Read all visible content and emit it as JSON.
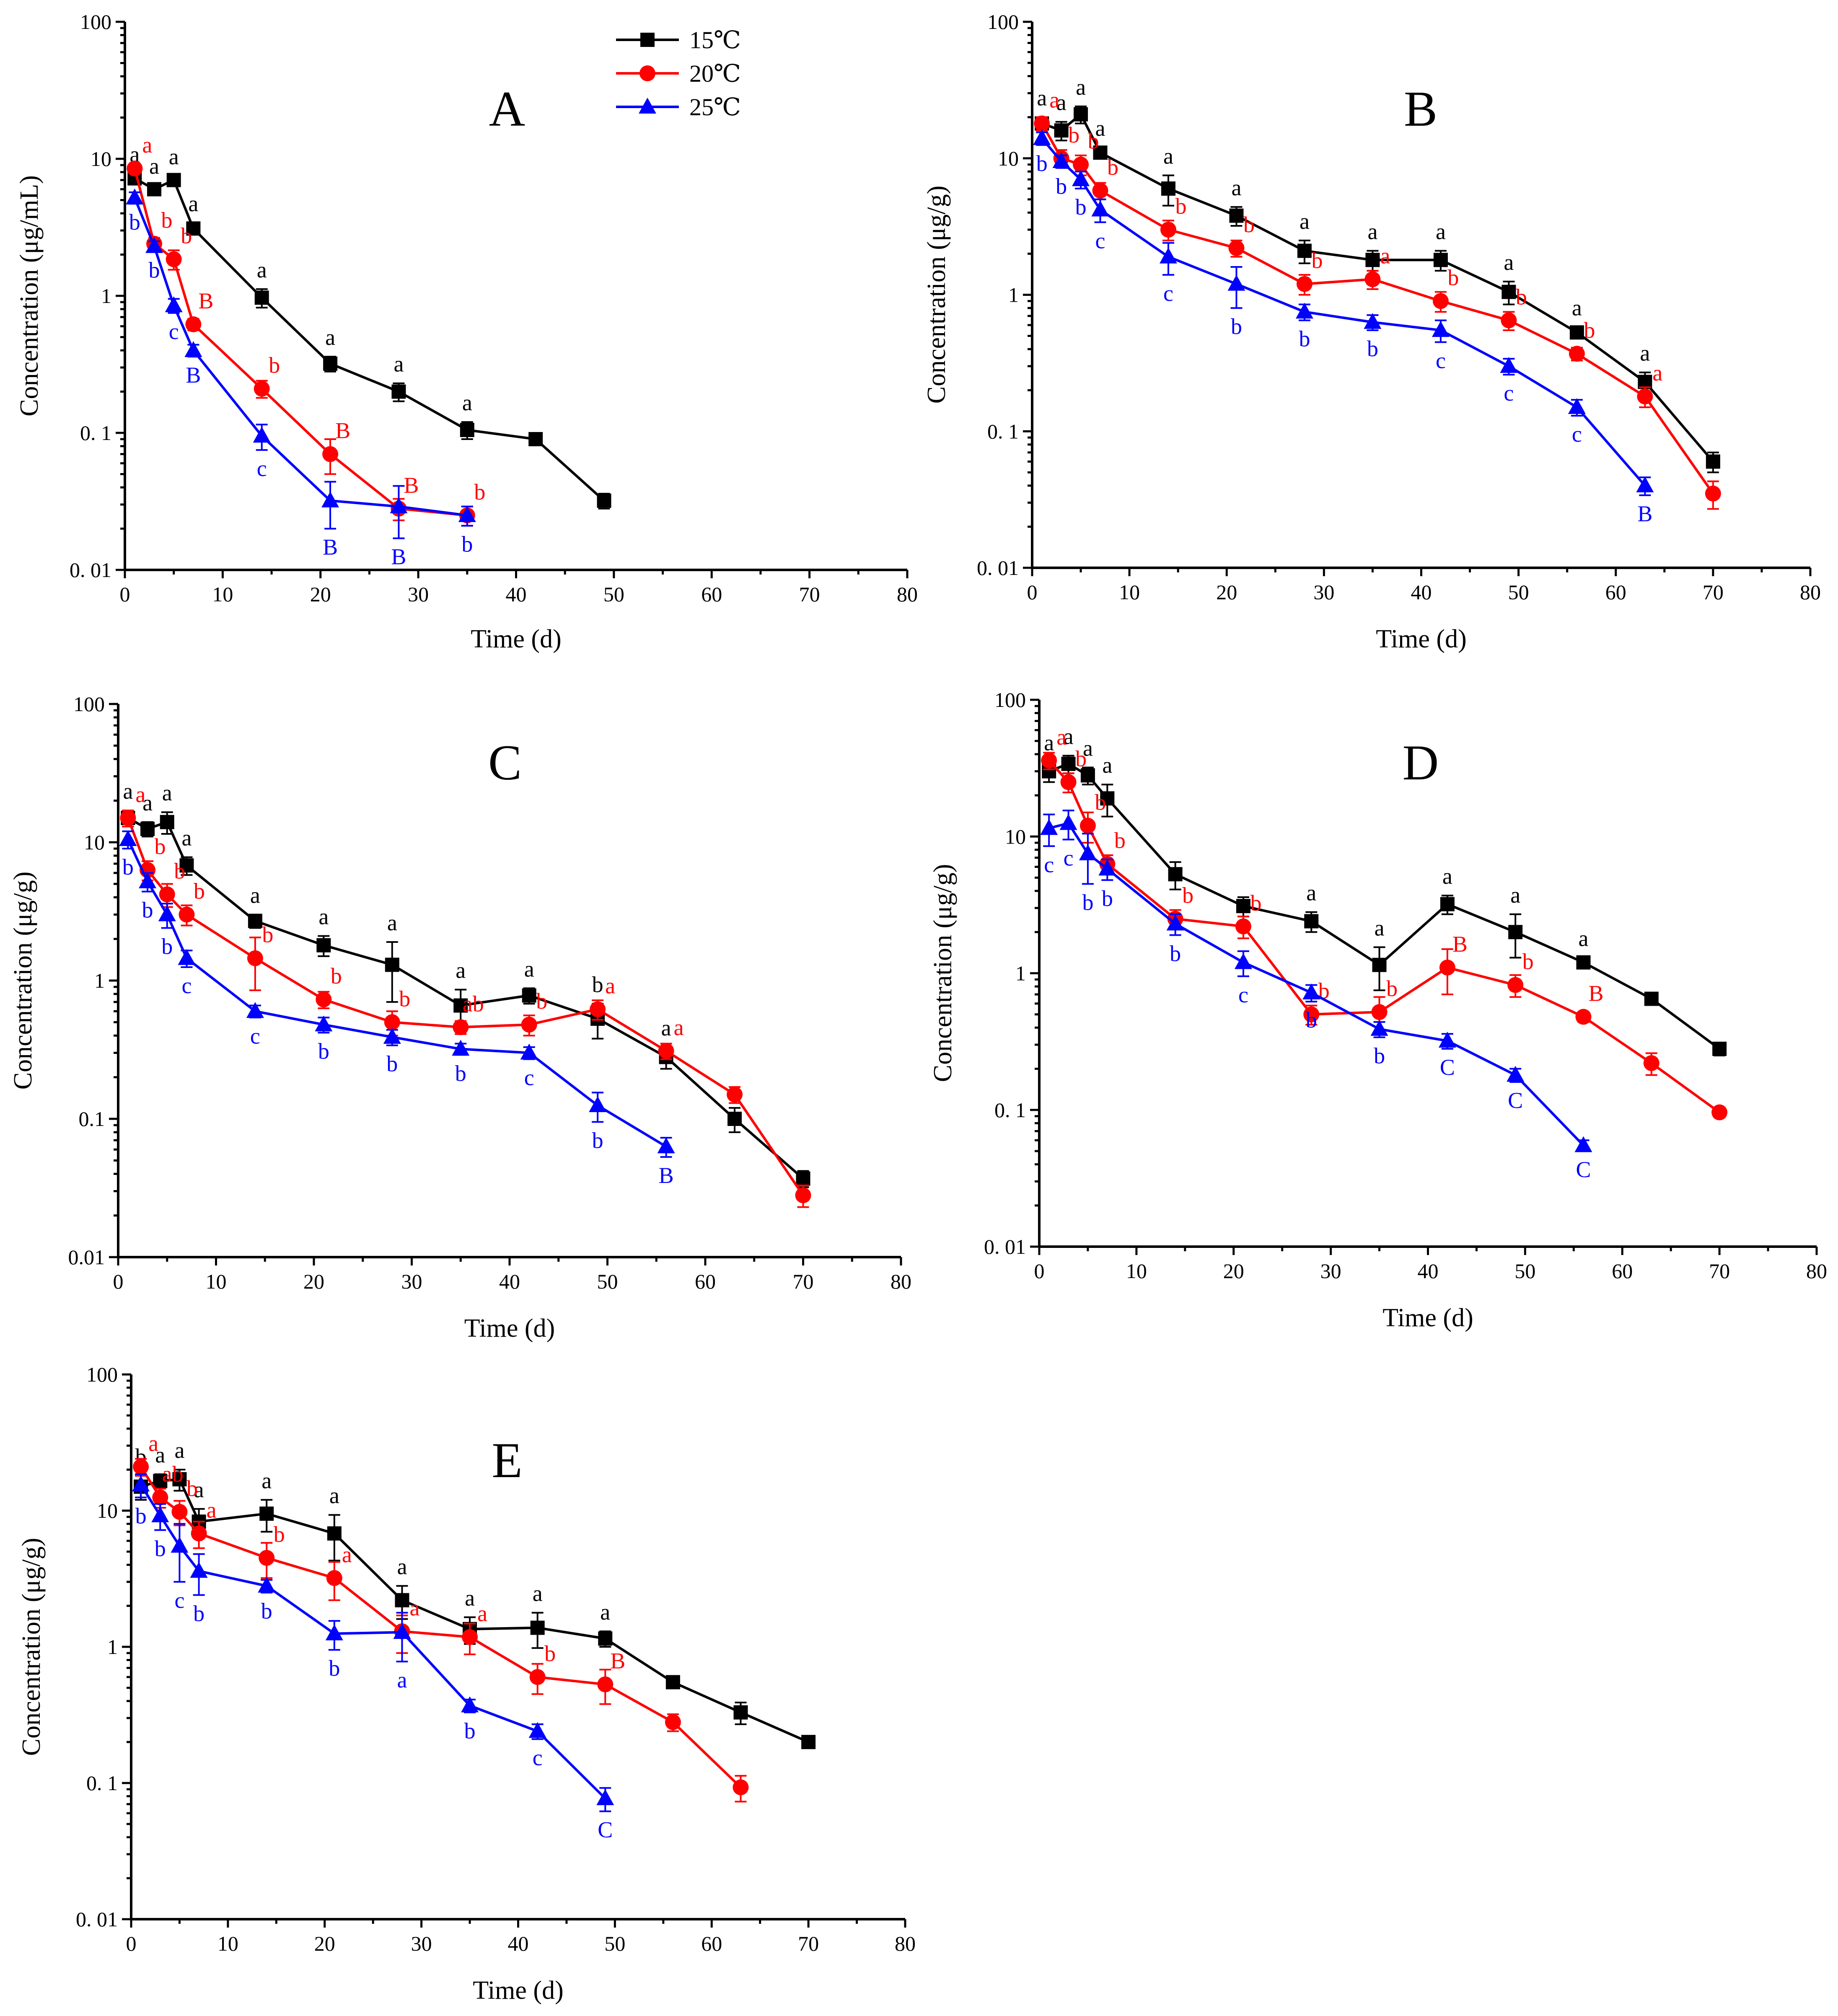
{
  "colors": {
    "15": "#000000",
    "20": "#ff0000",
    "25": "#0000ff"
  },
  "chart_data": [
    {
      "type": "line",
      "title": "A",
      "xlabel": "Time (d)",
      "ylabel": "Concentration (μg/mL)",
      "yscale": "log",
      "xlim": [
        0,
        80
      ],
      "ylim": [
        0.01,
        100
      ],
      "xticks": [
        "0",
        "10",
        "20",
        "30",
        "40",
        "50",
        "60",
        "70",
        "80"
      ],
      "yticks": [
        "0. 01",
        "0. 1",
        "1",
        "10",
        "100"
      ],
      "legend": [
        "15℃",
        "20℃",
        "25℃"
      ],
      "series": [
        {
          "name": "15℃",
          "marker": "square",
          "x": [
            1,
            3,
            5,
            7,
            14,
            21,
            28,
            35,
            42,
            49
          ],
          "values": [
            7.2,
            6.0,
            7.0,
            3.1,
            0.97,
            0.32,
            0.2,
            0.105,
            0.09,
            0.032
          ],
          "err": [
            0.6,
            0.4,
            0.5,
            0.3,
            0.15,
            0.04,
            0.03,
            0.015,
            0.004,
            0.004
          ],
          "labels": [
            "a",
            "a",
            "a",
            "a",
            "a",
            "a",
            "a",
            "a",
            "",
            ""
          ]
        },
        {
          "name": "20℃",
          "marker": "circle",
          "x": [
            1,
            3,
            5,
            7,
            14,
            21,
            28,
            35
          ],
          "values": [
            8.5,
            2.4,
            1.85,
            0.62,
            0.21,
            0.07,
            0.028,
            0.025
          ],
          "err": [
            0.7,
            0.25,
            0.3,
            0.06,
            0.03,
            0.02,
            0.005,
            0.004
          ],
          "labels": [
            "a",
            "b",
            "b",
            "B",
            "b",
            "B",
            "B",
            "b"
          ]
        },
        {
          "name": "25℃",
          "marker": "triangle",
          "x": [
            1,
            3,
            5,
            7,
            14,
            21,
            28,
            35
          ],
          "values": [
            5.2,
            2.3,
            0.85,
            0.4,
            0.095,
            0.032,
            0.029,
            0.025
          ],
          "err": [
            0.5,
            0.2,
            0.1,
            0.04,
            0.02,
            0.012,
            0.012,
            0.004
          ],
          "labels": [
            "b",
            "b",
            "c",
            "B",
            "c",
            "B",
            "B",
            "b"
          ]
        }
      ]
    },
    {
      "type": "line",
      "title": "B",
      "xlabel": "Time (d)",
      "ylabel": "Concentration (μg/g)",
      "yscale": "log",
      "xlim": [
        0,
        80
      ],
      "ylim": [
        0.01,
        100
      ],
      "xticks": [
        "0",
        "10",
        "20",
        "30",
        "40",
        "50",
        "60",
        "70",
        "80"
      ],
      "yticks": [
        "0. 01",
        "0. 1",
        "1",
        "10",
        "100"
      ],
      "series": [
        {
          "name": "15℃",
          "marker": "square",
          "x": [
            1,
            3,
            5,
            7,
            14,
            21,
            28,
            35,
            42,
            49,
            56,
            63,
            70
          ],
          "values": [
            18,
            16,
            21,
            11,
            6,
            3.8,
            2.1,
            1.8,
            1.8,
            1.05,
            0.53,
            0.23,
            0.06
          ],
          "err": [
            2,
            2.5,
            3,
            1,
            1.5,
            0.6,
            0.4,
            0.3,
            0.3,
            0.2,
            0.05,
            0.04,
            0.01
          ],
          "labels": [
            "a",
            "a",
            "a",
            "a",
            "a",
            "a",
            "a",
            "a",
            "a",
            "a",
            "a",
            "a",
            ""
          ]
        },
        {
          "name": "20℃",
          "marker": "circle",
          "x": [
            1,
            3,
            5,
            7,
            14,
            21,
            28,
            35,
            42,
            49,
            56,
            63,
            70
          ],
          "values": [
            18,
            10,
            9,
            5.8,
            3.0,
            2.2,
            1.2,
            1.3,
            0.9,
            0.65,
            0.37,
            0.18,
            0.035
          ],
          "err": [
            2,
            1.5,
            1.5,
            0.8,
            0.5,
            0.3,
            0.2,
            0.2,
            0.15,
            0.1,
            0.04,
            0.03,
            0.008
          ],
          "labels": [
            "a",
            "b",
            "b",
            "b",
            "b",
            "b",
            "b",
            "a",
            "b",
            "b",
            "b",
            "a",
            ""
          ]
        },
        {
          "name": "25℃",
          "marker": "triangle",
          "x": [
            1,
            3,
            5,
            7,
            14,
            21,
            28,
            35,
            42,
            49,
            56,
            63
          ],
          "values": [
            14,
            9.5,
            7,
            4.2,
            1.9,
            1.2,
            0.75,
            0.63,
            0.55,
            0.3,
            0.15,
            0.04
          ],
          "err": [
            1.5,
            1,
            1,
            0.8,
            0.5,
            0.4,
            0.1,
            0.08,
            0.1,
            0.04,
            0.02,
            0.006
          ],
          "labels": [
            "b",
            "b",
            "b",
            "c",
            "c",
            "b",
            "b",
            "b",
            "c",
            "c",
            "c",
            "B"
          ]
        }
      ]
    },
    {
      "type": "line",
      "title": "C",
      "xlabel": "Time (d)",
      "ylabel": "Concentration (μg/g)",
      "yscale": "log",
      "xlim": [
        0,
        80
      ],
      "ylim": [
        0.01,
        100
      ],
      "xticks": [
        "0",
        "10",
        "20",
        "30",
        "40",
        "50",
        "60",
        "70",
        "80"
      ],
      "yticks": [
        "0.01",
        "0.1",
        "1",
        "10",
        "100"
      ],
      "series": [
        {
          "name": "15℃",
          "marker": "square",
          "x": [
            1,
            3,
            5,
            7,
            14,
            21,
            28,
            35,
            42,
            49,
            56,
            63,
            70
          ],
          "values": [
            15,
            12.5,
            14,
            6.8,
            2.7,
            1.8,
            1.3,
            0.66,
            0.78,
            0.53,
            0.28,
            0.1,
            0.037
          ],
          "err": [
            2,
            1.5,
            2.5,
            1,
            0.3,
            0.3,
            0.6,
            0.2,
            0.1,
            0.15,
            0.05,
            0.02,
            0.005
          ],
          "labels": [
            "a",
            "a",
            "a",
            "a",
            "a",
            "a",
            "a",
            "a",
            "a",
            "b",
            "a",
            "",
            ""
          ]
        },
        {
          "name": "20℃",
          "marker": "circle",
          "x": [
            1,
            3,
            5,
            7,
            14,
            21,
            28,
            35,
            42,
            49,
            56,
            63,
            70
          ],
          "values": [
            15,
            6.3,
            4.2,
            3.0,
            1.45,
            0.73,
            0.5,
            0.46,
            0.48,
            0.62,
            0.31,
            0.15,
            0.028
          ],
          "err": [
            2,
            1,
            0.8,
            0.5,
            0.6,
            0.1,
            0.1,
            0.05,
            0.08,
            0.1,
            0.04,
            0.02,
            0.005
          ],
          "labels": [
            "a",
            "b",
            "b",
            "b",
            "b",
            "b",
            "b",
            "ab",
            "b",
            "a",
            "a",
            "",
            ""
          ]
        },
        {
          "name": "25℃",
          "marker": "triangle",
          "x": [
            1,
            3,
            5,
            7,
            14,
            21,
            28,
            35,
            42,
            49,
            56
          ],
          "values": [
            10.5,
            5.2,
            3.0,
            1.45,
            0.6,
            0.48,
            0.39,
            0.32,
            0.3,
            0.125,
            0.063
          ],
          "err": [
            1.5,
            0.8,
            0.6,
            0.2,
            0.06,
            0.06,
            0.05,
            0.03,
            0.03,
            0.03,
            0.01
          ],
          "labels": [
            "b",
            "b",
            "b",
            "c",
            "c",
            "b",
            "b",
            "b",
            "c",
            "b",
            "B"
          ]
        }
      ]
    },
    {
      "type": "line",
      "title": "D",
      "xlabel": "Time (d)",
      "ylabel": "Concentration (μg/g)",
      "yscale": "log",
      "xlim": [
        0,
        80
      ],
      "ylim": [
        0.01,
        100
      ],
      "xticks": [
        "0",
        "10",
        "20",
        "30",
        "40",
        "50",
        "60",
        "70",
        "80"
      ],
      "yticks": [
        "0. 01",
        "0. 1",
        "1",
        "10",
        "100"
      ],
      "series": [
        {
          "name": "15℃",
          "marker": "square",
          "x": [
            1,
            3,
            5,
            7,
            14,
            21,
            28,
            35,
            42,
            49,
            56,
            63,
            70
          ],
          "values": [
            30,
            34,
            28,
            19,
            5.3,
            3.1,
            2.4,
            1.15,
            3.2,
            2.0,
            1.2,
            0.65,
            0.28
          ],
          "err": [
            5,
            5,
            4,
            5,
            1.2,
            0.5,
            0.4,
            0.4,
            0.5,
            0.7,
            0.1,
            0.05,
            0.03
          ],
          "labels": [
            "a",
            "a",
            "a",
            "a",
            "",
            "",
            "a",
            "a",
            "a",
            "a",
            "a",
            "",
            ""
          ]
        },
        {
          "name": "20℃",
          "marker": "circle",
          "x": [
            1,
            3,
            5,
            7,
            14,
            21,
            28,
            35,
            42,
            49,
            56,
            63,
            70
          ],
          "values": [
            36,
            25,
            12,
            6.3,
            2.5,
            2.2,
            0.5,
            0.52,
            1.1,
            0.82,
            0.48,
            0.22,
            0.096
          ],
          "err": [
            5,
            4,
            3,
            1,
            0.4,
            0.4,
            0.08,
            0.15,
            0.4,
            0.15,
            0.04,
            0.04,
            0.008
          ],
          "labels": [
            "a",
            "b",
            "b",
            "b",
            "b",
            "b",
            "b",
            "b",
            "B",
            "b",
            "B",
            "",
            ""
          ]
        },
        {
          "name": "25℃",
          "marker": "triangle",
          "x": [
            1,
            3,
            5,
            7,
            14,
            21,
            28,
            35,
            42,
            49,
            56
          ],
          "values": [
            11.5,
            12.5,
            7.5,
            5.8,
            2.3,
            1.2,
            0.72,
            0.39,
            0.32,
            0.18,
            0.055
          ],
          "err": [
            3,
            3,
            3,
            1,
            0.4,
            0.25,
            0.1,
            0.05,
            0.04,
            0.02,
            0.005
          ],
          "labels": [
            "c",
            "c",
            "b",
            "b",
            "b",
            "c",
            "b",
            "b",
            "C",
            "C",
            "C"
          ]
        }
      ]
    },
    {
      "type": "line",
      "title": "E",
      "xlabel": "Time (d)",
      "ylabel": "Concentration (μg/g)",
      "yscale": "log",
      "xlim": [
        0,
        80
      ],
      "ylim": [
        0.01,
        100
      ],
      "xticks": [
        "0",
        "10",
        "20",
        "30",
        "40",
        "50",
        "60",
        "70",
        "80"
      ],
      "yticks": [
        "0. 01",
        "0. 1",
        "1",
        "10",
        "100"
      ],
      "series": [
        {
          "name": "15℃",
          "marker": "square",
          "x": [
            1,
            3,
            5,
            7,
            14,
            21,
            28,
            35,
            42,
            49,
            56,
            63,
            70
          ],
          "values": [
            15,
            16.5,
            17,
            8.3,
            9.5,
            6.8,
            2.2,
            1.35,
            1.38,
            1.15,
            0.55,
            0.33,
            0.2
          ],
          "err": [
            3,
            2,
            3,
            2,
            2.5,
            2.5,
            0.6,
            0.3,
            0.4,
            0.15,
            0.04,
            0.06,
            0.02
          ],
          "labels": [
            "b",
            "a",
            "a",
            "a",
            "a",
            "a",
            "a",
            "a",
            "a",
            "a",
            "",
            "",
            ""
          ]
        },
        {
          "name": "20℃",
          "marker": "circle",
          "x": [
            1,
            3,
            5,
            7,
            14,
            21,
            28,
            35,
            42,
            49,
            56,
            63
          ],
          "values": [
            21,
            12.5,
            9.8,
            6.8,
            4.5,
            3.2,
            1.3,
            1.18,
            0.6,
            0.53,
            0.28,
            0.093
          ],
          "err": [
            3,
            2,
            2,
            1.5,
            1.3,
            1,
            0.4,
            0.3,
            0.15,
            0.15,
            0.04,
            0.02
          ],
          "labels": [
            "a",
            "ab",
            "b",
            "a",
            "b",
            "a",
            "a",
            "a",
            "b",
            "B",
            "",
            ""
          ]
        },
        {
          "name": "25℃",
          "marker": "triangle",
          "x": [
            1,
            3,
            5,
            7,
            14,
            21,
            28,
            35,
            42,
            49
          ],
          "values": [
            15.5,
            9.2,
            5.5,
            3.6,
            2.8,
            1.25,
            1.28,
            0.37,
            0.24,
            0.077
          ],
          "err": [
            3,
            2,
            2.5,
            1.2,
            0.3,
            0.3,
            0.5,
            0.04,
            0.03,
            0.015
          ],
          "labels": [
            "b",
            "b",
            "c",
            "b",
            "b",
            "b",
            "a",
            "b",
            "c",
            "C"
          ]
        }
      ]
    }
  ]
}
